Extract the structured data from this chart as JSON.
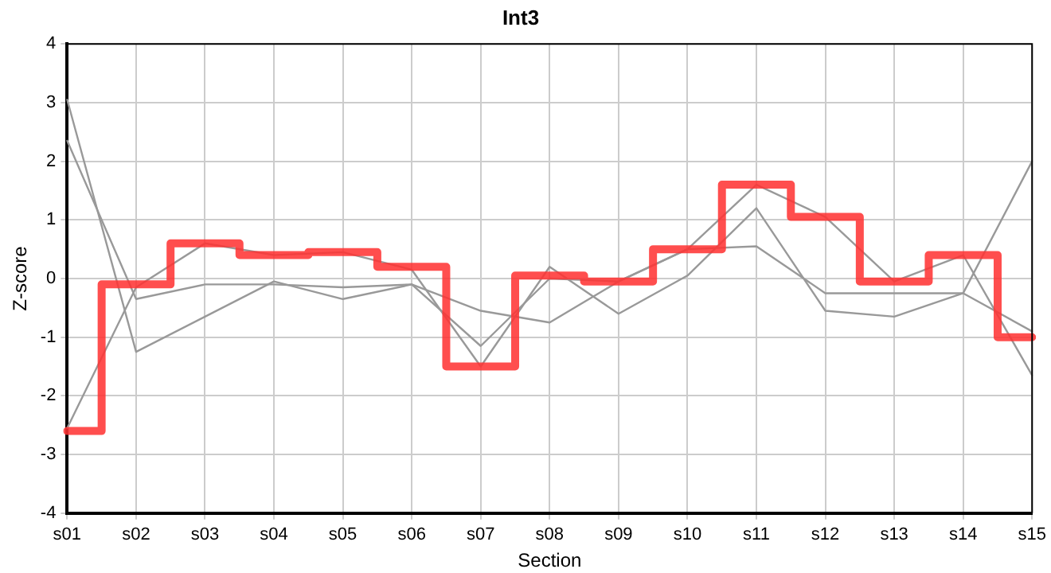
{
  "chart_data": {
    "type": "line",
    "title": "Int3",
    "xlabel": "Section",
    "ylabel": "Z-score",
    "categories": [
      "s01",
      "s02",
      "s03",
      "s04",
      "s05",
      "s06",
      "s07",
      "s08",
      "s09",
      "s10",
      "s11",
      "s12",
      "s13",
      "s14",
      "s15"
    ],
    "series": [
      {
        "color": "#999999",
        "values": [
          3.05,
          -1.25,
          -0.65,
          -0.05,
          -0.35,
          -0.1,
          -1.15,
          0.0,
          -0.05,
          0.5,
          1.6,
          1.05,
          -0.05,
          0.4,
          -1.65
        ]
      },
      {
        "color": "#999999",
        "values": [
          2.35,
          -0.35,
          -0.1,
          -0.1,
          -0.15,
          -0.1,
          -0.55,
          -0.75,
          -0.05,
          0.5,
          0.55,
          -0.25,
          -0.25,
          -0.25,
          -0.9
        ]
      },
      {
        "color": "#999999",
        "values": [
          -2.55,
          -0.15,
          0.6,
          0.4,
          0.45,
          0.15,
          -1.5,
          0.2,
          -0.6,
          0.05,
          1.2,
          -0.55,
          -0.65,
          -0.25,
          2.0
        ]
      },
      {
        "type": "step",
        "color": "#ff3333",
        "values": [
          -2.6,
          -0.1,
          0.6,
          0.4,
          0.45,
          0.2,
          -1.5,
          0.05,
          -0.05,
          0.5,
          1.6,
          1.05,
          -0.05,
          0.4,
          -1.0
        ]
      }
    ],
    "ylim": [
      -4,
      4
    ],
    "yticks": [
      -4,
      -3,
      -2,
      -1,
      0,
      1,
      2,
      3,
      4
    ],
    "grid": true,
    "legend": false,
    "marker": "none",
    "line_style": "solid"
  }
}
